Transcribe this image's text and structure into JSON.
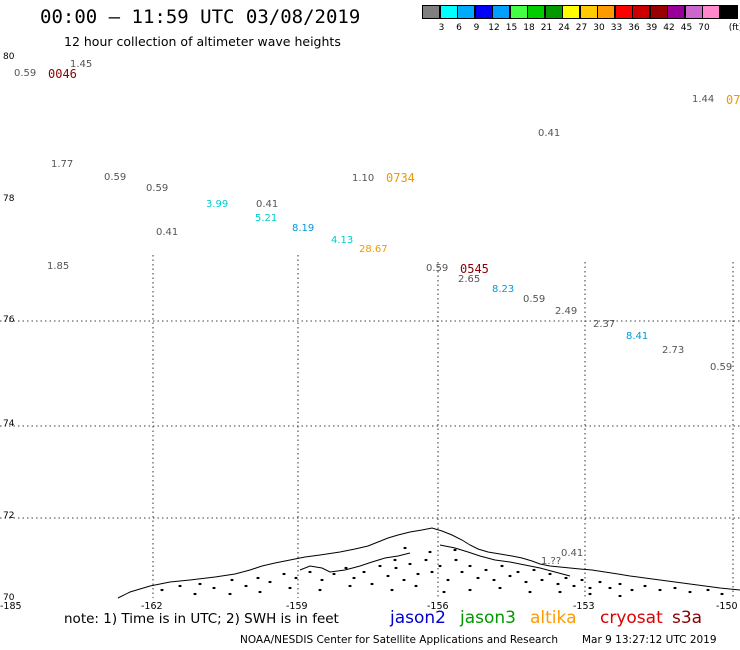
{
  "title": "00:00 – 11:59 UTC 03/08/2019",
  "subtitle": "12 hour collection of altimeter wave heights",
  "colorbar": {
    "colors": [
      "#7f7f7f",
      "#00ffff",
      "#00aaff",
      "#0000ff",
      "#00a0ff",
      "#44ff44",
      "#00cc00",
      "#009900",
      "#ffff00",
      "#ffcc00",
      "#ff9900",
      "#ff0000",
      "#cc0000",
      "#990000",
      "#990099",
      "#cc66cc",
      "#ff88cc",
      "#000000"
    ],
    "labels": [
      "3",
      "6",
      "9",
      "12",
      "15",
      "18",
      "21",
      "24",
      "27",
      "30",
      "33",
      "36",
      "39",
      "42",
      "45",
      "70"
    ],
    "unit": "(ft)"
  },
  "lat_labels": [
    "80",
    "78",
    "76",
    "74",
    "72",
    "70"
  ],
  "lon_labels": [
    "-185",
    "-162",
    "-159",
    "-156",
    "-153",
    "-150"
  ],
  "wave_heights": [
    {
      "v": "0.59",
      "c": "#555555"
    },
    {
      "v": "1.45",
      "c": "#555555"
    },
    {
      "v": "1.77",
      "c": "#555555"
    },
    {
      "v": "0.59",
      "c": "#555555"
    },
    {
      "v": "0.59",
      "c": "#555555"
    },
    {
      "v": "3.99",
      "c": "#00cccc"
    },
    {
      "v": "0.41",
      "c": "#555555"
    },
    {
      "v": "5.21",
      "c": "#00cccc"
    },
    {
      "v": "8.19",
      "c": "#0099dd"
    },
    {
      "v": "4.13",
      "c": "#00cccc"
    },
    {
      "v": "28.67",
      "c": "#ee9900"
    },
    {
      "v": "0.41",
      "c": "#555555"
    },
    {
      "v": "1.85",
      "c": "#555555"
    },
    {
      "v": "1.10",
      "c": "#555555"
    },
    {
      "v": "0.41",
      "c": "#555555"
    },
    {
      "v": "1.44",
      "c": "#555555"
    },
    {
      "v": "0.59",
      "c": "#555555"
    },
    {
      "v": "2.65",
      "c": "#555555"
    },
    {
      "v": "8.23",
      "c": "#0099dd"
    },
    {
      "v": "0.59",
      "c": "#555555"
    },
    {
      "v": "2.49",
      "c": "#555555"
    },
    {
      "v": "2.37",
      "c": "#555555"
    },
    {
      "v": "8.41",
      "c": "#0099dd"
    },
    {
      "v": "2.73",
      "c": "#555555"
    },
    {
      "v": "0.59",
      "c": "#555555"
    },
    {
      "v": "0.41",
      "c": "#555555"
    },
    {
      "v": "1.??",
      "c": "#555555"
    }
  ],
  "pass_times": [
    {
      "v": "0046",
      "c": "#8b0000"
    },
    {
      "v": "0734",
      "c": "#ee9900"
    },
    {
      "v": "0545",
      "c": "#8b0000"
    },
    {
      "v": "07",
      "c": "#ee9900"
    }
  ],
  "note": "note: 1) Time is in UTC; 2) SWH is in feet",
  "satellites": [
    {
      "name": "jason2",
      "color": "#0000cc"
    },
    {
      "name": "jason3",
      "color": "#009900"
    },
    {
      "name": "altika",
      "color": "#ff9900"
    },
    {
      "name": "cryosat",
      "color": "#dd0000"
    },
    {
      "name": "s3a",
      "color": "#880000"
    }
  ],
  "footer": "NOAA/NESDIS Center for Satellite Applications and Research",
  "footer_date": "Mar  9 13:27:12 UTC 2019"
}
